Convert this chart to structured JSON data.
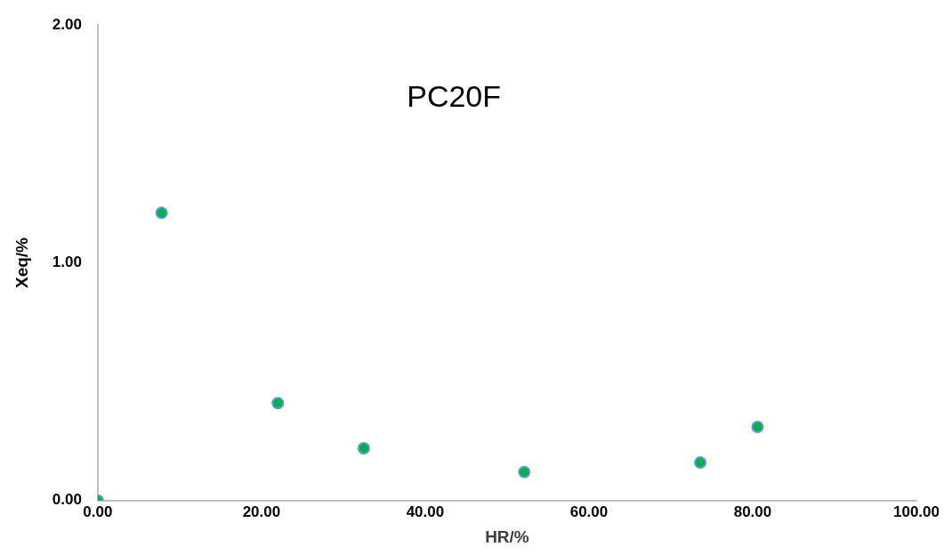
{
  "chart_data": {
    "type": "scatter",
    "title": "PC20F",
    "xlabel": "HR/%",
    "ylabel": "Xeq/%",
    "x": [
      0,
      7.8,
      22.0,
      32.5,
      52.1,
      73.6,
      80.6
    ],
    "values": [
      0,
      1.21,
      0.41,
      0.22,
      0.12,
      0.16,
      0.31
    ],
    "color": "#00b050",
    "marker": "circle",
    "xlim": [
      0,
      100
    ],
    "xticks": [
      {
        "value": 0,
        "label": "0.00"
      },
      {
        "value": 20,
        "label": "20.00"
      },
      {
        "value": 40,
        "label": "40.00"
      },
      {
        "value": 60,
        "label": "60.00"
      },
      {
        "value": 80,
        "label": "80.00"
      },
      {
        "value": 100,
        "label": "100.00"
      }
    ],
    "ylim": [
      0,
      2
    ],
    "yticks": [
      {
        "value": 0,
        "label": "0.00"
      },
      {
        "value": 1,
        "label": "1.00"
      },
      {
        "value": 2,
        "label": "2.00"
      }
    ],
    "grid": false,
    "legend": false
  }
}
